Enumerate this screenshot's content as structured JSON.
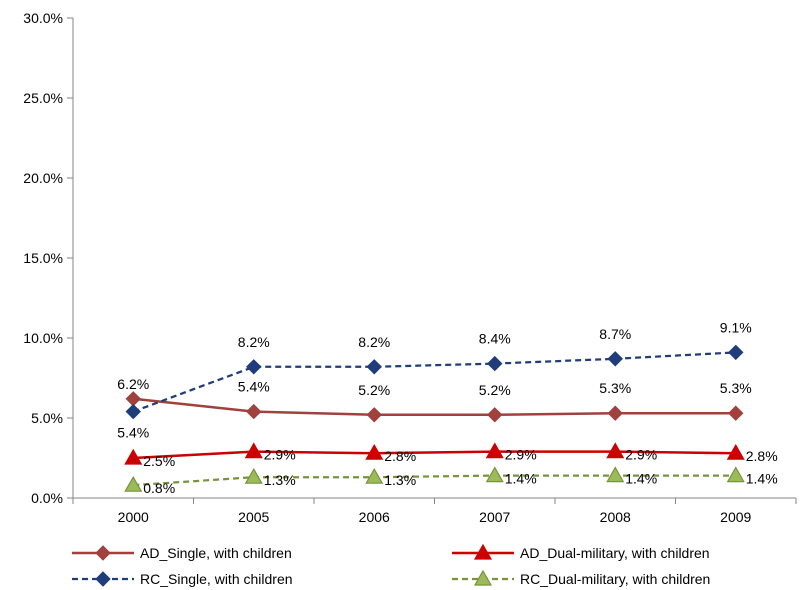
{
  "chart_data": {
    "type": "line",
    "title": "",
    "xlabel": "",
    "ylabel": "",
    "categories": [
      "2000",
      "2005",
      "2006",
      "2007",
      "2008",
      "2009"
    ],
    "ylim": [
      0,
      30
    ],
    "yticks": [
      "0.0%",
      "5.0%",
      "10.0%",
      "15.0%",
      "20.0%",
      "25.0%",
      "30.0%"
    ],
    "grid": false,
    "legend_position": "bottom",
    "series": [
      {
        "name": "AD_Single, with children",
        "values": [
          6.2,
          5.4,
          5.2,
          5.2,
          5.3,
          5.3
        ],
        "labels": [
          "6.2%",
          "5.4%",
          "5.2%",
          "5.2%",
          "5.3%",
          "5.3%"
        ],
        "color": "#a0413e",
        "marker": "diamond",
        "dash": "solid"
      },
      {
        "name": "AD_Dual-military, with children",
        "values": [
          2.5,
          2.9,
          2.8,
          2.9,
          2.9,
          2.8
        ],
        "labels": [
          "2.5%",
          "2.9%",
          "2.8%",
          "2.9%",
          "2.9%",
          "2.8%"
        ],
        "color": "#cc0000",
        "marker": "triangle",
        "dash": "solid"
      },
      {
        "name": "RC_Single, with children",
        "values": [
          5.4,
          8.2,
          8.2,
          8.4,
          8.7,
          9.1
        ],
        "labels": [
          "5.4%",
          "8.2%",
          "8.2%",
          "8.4%",
          "8.7%",
          "9.1%"
        ],
        "color": "#1f3d7a",
        "marker": "diamond",
        "dash": "dashed"
      },
      {
        "name": "RC_Dual-military, with children",
        "values": [
          0.8,
          1.3,
          1.3,
          1.4,
          1.4,
          1.4
        ],
        "labels": [
          "0.8%",
          "1.3%",
          "1.3%",
          "1.4%",
          "1.4%",
          "1.4%"
        ],
        "color": "#77933c",
        "marker_fill": "#9bbb59",
        "marker": "triangle",
        "dash": "dashed"
      }
    ]
  }
}
